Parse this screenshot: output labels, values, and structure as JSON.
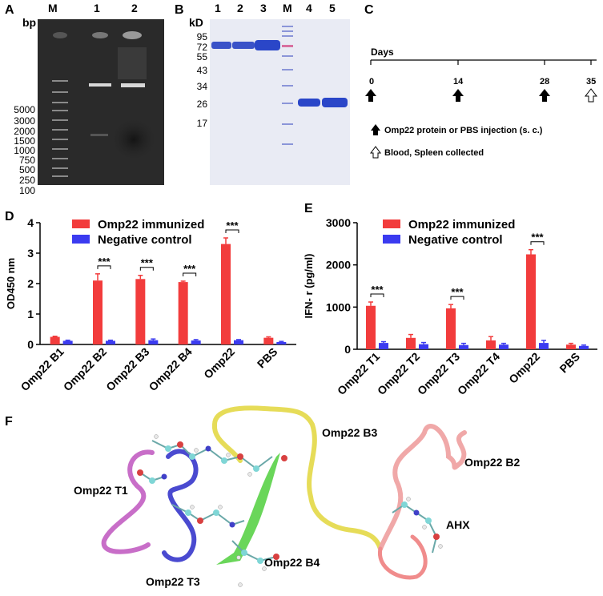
{
  "panels": {
    "a": "A",
    "b": "B",
    "c": "C",
    "d": "D",
    "e": "E",
    "f": "F"
  },
  "panel_a": {
    "bp_unit": "bp",
    "lanes": [
      "M",
      "1",
      "2"
    ],
    "ladder": [
      "5000",
      "3000",
      "2000",
      "1500",
      "1000",
      "750",
      "500",
      "250",
      "100"
    ]
  },
  "panel_b": {
    "kd_unit": "kD",
    "lanes": [
      "1",
      "2",
      "3",
      "M",
      "4",
      "5"
    ],
    "markers": [
      "95",
      "72",
      "55",
      "43",
      "34",
      "26",
      "17"
    ]
  },
  "panel_c": {
    "axis_title": "Days",
    "ticks": [
      "0",
      "14",
      "28",
      "35"
    ],
    "legend_injection": "Omp22 protein or PBS injection (s. c.)",
    "legend_collection": "Blood, Spleen collected"
  },
  "chart_data": [
    {
      "type": "bar",
      "panel": "D",
      "ylabel": "OD450 nm",
      "ylim": [
        0,
        4
      ],
      "yticks": [
        "0",
        "1",
        "2",
        "3",
        "4"
      ],
      "categories": [
        "Omp22 B1",
        "Omp22 B2",
        "Omp22 B3",
        "Omp22 B4",
        "Omp22",
        "PBS"
      ],
      "series": [
        {
          "name": "Omp22 immunized",
          "color": "#f23c3c",
          "values": [
            0.25,
            2.1,
            2.15,
            2.05,
            3.3,
            0.22
          ],
          "errors": [
            0.02,
            0.22,
            0.12,
            0.03,
            0.2,
            0.03
          ]
        },
        {
          "name": "Negative control",
          "color": "#3b3bf0",
          "values": [
            0.12,
            0.12,
            0.14,
            0.13,
            0.14,
            0.08
          ],
          "errors": [
            0.02,
            0.02,
            0.04,
            0.03,
            0.02,
            0.02
          ]
        }
      ],
      "significance": [
        {
          "category": "Omp22 B2",
          "label": "***"
        },
        {
          "category": "Omp22 B3",
          "label": "***"
        },
        {
          "category": "Omp22 B4",
          "label": "***"
        },
        {
          "category": "Omp22",
          "label": "***"
        }
      ],
      "legend": "top-left"
    },
    {
      "type": "bar",
      "panel": "E",
      "ylabel": "IFN- r (pg/ml)",
      "ylim": [
        0,
        3000
      ],
      "yticks": [
        "0",
        "1000",
        "2000",
        "3000"
      ],
      "categories": [
        "Omp22 T1",
        "Omp22 T2",
        "Omp22 T3",
        "Omp22 T4",
        "Omp22",
        "PBS"
      ],
      "series": [
        {
          "name": "Omp22 immunized",
          "color": "#f23c3c",
          "values": [
            1030,
            270,
            970,
            210,
            2250,
            110
          ],
          "errors": [
            90,
            80,
            90,
            90,
            110,
            30
          ]
        },
        {
          "name": "Negative control",
          "color": "#3b3bf0",
          "values": [
            150,
            120,
            100,
            110,
            150,
            80
          ],
          "errors": [
            30,
            40,
            40,
            30,
            60,
            20
          ]
        }
      ],
      "significance": [
        {
          "category": "Omp22 T1",
          "label": "***"
        },
        {
          "category": "Omp22 T3",
          "label": "***"
        },
        {
          "category": "Omp22",
          "label": "***"
        }
      ],
      "legend": "top-left"
    }
  ],
  "panel_f": {
    "labels": {
      "t1": "Omp22 T1",
      "t3": "Omp22 T3",
      "b3": "Omp22 B3",
      "b2": "Omp22 B2",
      "b4": "Omp22 B4",
      "ahx": "AHX"
    },
    "colors": {
      "t1": "#c86ec8",
      "t3": "#4a4ad0",
      "b3": "#e8e060",
      "b2": "#f0a0a0",
      "b4": "#6ad65a",
      "ahx": "#f08c8c"
    }
  }
}
